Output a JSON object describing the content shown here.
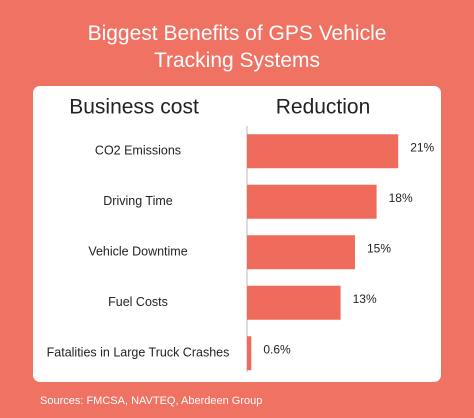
{
  "chart_data": {
    "type": "bar",
    "orientation": "horizontal",
    "title": "Biggest Benefits of GPS Vehicle Tracking Systems",
    "category_header": "Business cost",
    "value_header": "Reduction",
    "categories": [
      "CO2 Emissions",
      "Driving Time",
      "Vehicle Downtime",
      "Fuel Costs",
      "Fatalities in Large Truck Crashes"
    ],
    "values": [
      21,
      18,
      15,
      13,
      0.6
    ],
    "value_labels": [
      "21%",
      "18%",
      "15%",
      "13%",
      "0.6%"
    ],
    "color": "#ef6b5b",
    "source": "Sources: FMCSA, NAVTEQ, Aberdeen Group"
  }
}
